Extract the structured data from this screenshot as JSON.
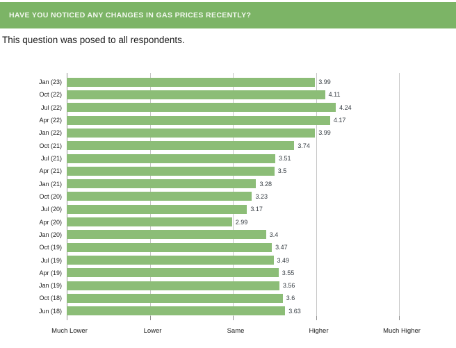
{
  "header": {
    "title": "HAVE YOU NOTICED ANY CHANGES IN GAS PRICES RECENTLY?",
    "bg_color": "#7CB466",
    "text_color": "#F3F8EF"
  },
  "subtitle": "This question was posed to all respondents.",
  "chart_data": {
    "type": "bar",
    "orientation": "horizontal",
    "title": "HAVE YOU NOTICED ANY CHANGES IN GAS PRICES RECENTLY?",
    "categories": [
      "Jan (23)",
      "Oct (22)",
      "Jul (22)",
      "Apr (22)",
      "Jan (22)",
      "Oct (21)",
      "Jul (21)",
      "Apr (21)",
      "Jan (21)",
      "Oct (20)",
      "Jul (20)",
      "Apr (20)",
      "Jan (20)",
      "Oct (19)",
      "Jul (19)",
      "Apr (19)",
      "Jan (19)",
      "Oct (18)",
      "Jun (18)"
    ],
    "values": [
      3.99,
      4.11,
      4.24,
      4.17,
      3.99,
      3.74,
      3.51,
      3.5,
      3.28,
      3.23,
      3.17,
      2.99,
      3.4,
      3.47,
      3.49,
      3.55,
      3.56,
      3.6,
      3.63
    ],
    "value_labels": [
      "3.99",
      "4.11",
      "4.24",
      "4.17",
      "3.99",
      "3.74",
      "3.51",
      "3.5",
      "3.28",
      "3.23",
      "3.17",
      "2.99",
      "3.4",
      "3.47",
      "3.49",
      "3.55",
      "3.56",
      "3.6",
      "3.63"
    ],
    "x_axis": {
      "tick_labels": [
        "Much Lower",
        "Lower",
        "Same",
        "Higher",
        "Much Higher"
      ],
      "tick_values": [
        1,
        2,
        3,
        4,
        5
      ],
      "range": [
        1,
        5
      ]
    },
    "grid": true,
    "legend": false,
    "bar_color": "#8CBD77",
    "gridline_color": "#C6C6C6",
    "axis_color": "#8F8F8F",
    "label_color": "#1a1a1a",
    "value_color": "#333a40"
  }
}
